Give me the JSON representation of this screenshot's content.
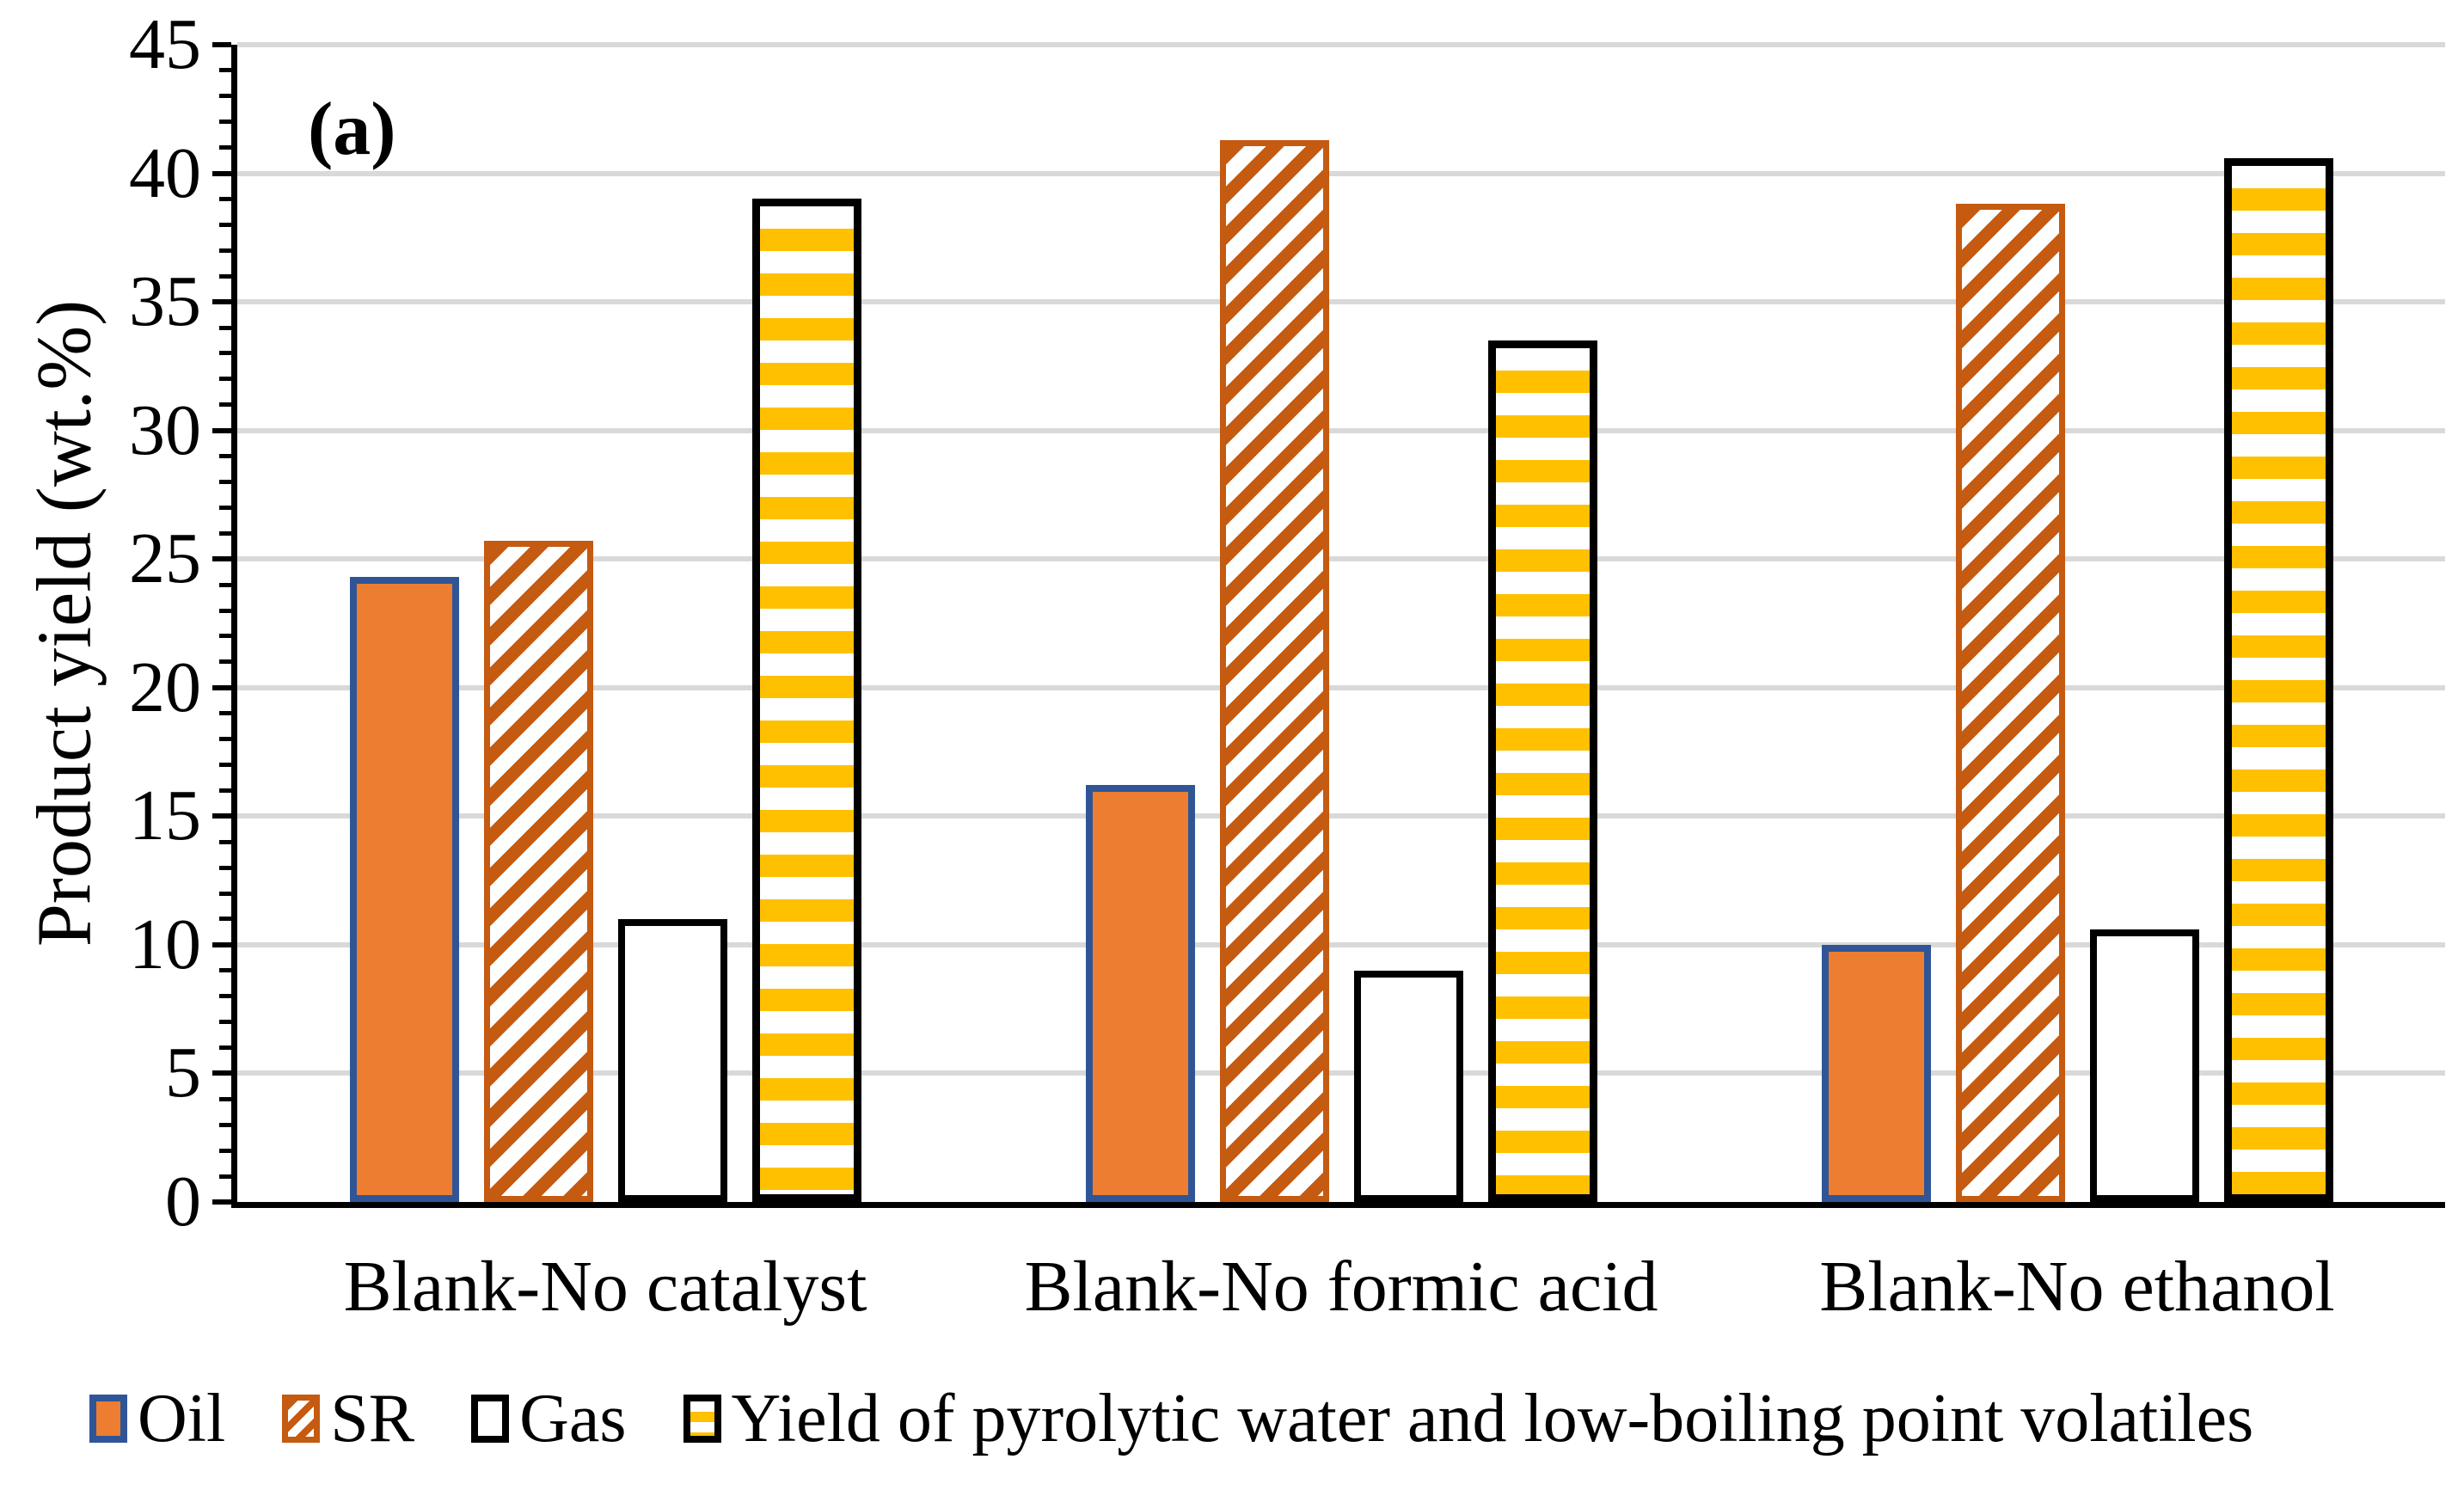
{
  "panel_label": "(a)",
  "y_axis": {
    "title": "Product yield (wt.%)",
    "min": 0,
    "max": 45,
    "major_step": 5,
    "minor_step": 1
  },
  "chart_data": {
    "type": "bar",
    "title": "",
    "xlabel": "",
    "ylabel": "Product yield (wt.%)",
    "ylim": [
      0,
      45
    ],
    "grid": true,
    "legend_position": "bottom",
    "categories": [
      "Blank-No catalyst",
      "Blank-No formic acid",
      "Blank-No ethanol"
    ],
    "series": [
      {
        "name": "Oil",
        "values": [
          24.3,
          16.2,
          10.0
        ],
        "pattern": "solid",
        "fill": "#ED7D31",
        "border": "#2F5597"
      },
      {
        "name": "SR",
        "values": [
          25.7,
          41.3,
          38.8
        ],
        "pattern": "diagonal-stripes",
        "fill": "#FFFFFF",
        "pattern_color": "#C55A11",
        "border": "#C55A11"
      },
      {
        "name": "Gas",
        "values": [
          11.0,
          9.0,
          10.6
        ],
        "pattern": "solid",
        "fill": "#FFFFFF",
        "border": "#000000"
      },
      {
        "name": "Yield of pyrolytic water and low-boiling point volatiles",
        "values": [
          39.0,
          33.5,
          40.6
        ],
        "pattern": "horizontal-stripes",
        "fill": "#FFFFFF",
        "pattern_color": "#FFC000",
        "border": "#000000"
      }
    ]
  },
  "colors": {
    "gridline": "#D9D9D9",
    "axis": "#000000",
    "text": "#000000",
    "oil_fill": "#ED7D31",
    "oil_border": "#2F5597",
    "sr_stripe": "#C55A11",
    "yellow_stripe": "#FFC000"
  }
}
